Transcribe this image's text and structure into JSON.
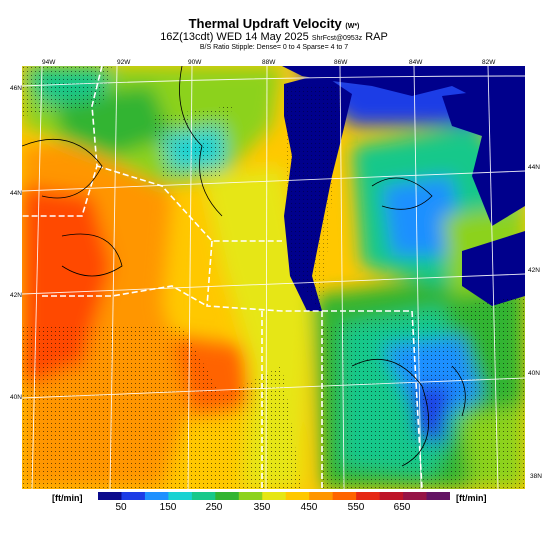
{
  "header": {
    "title": "Thermal Updraft Velocity",
    "title_suffix": "(W*)",
    "line2_main": "16Z(13cdt) WED 14 May 2025",
    "line2_small": "ShrFcst@0953z",
    "line2_model": "RAP",
    "line3": "B/S Ratio Stipple: Dense= 0 to 4 Sparse= 4 to 7"
  },
  "lon_labels": [
    "94W",
    "92W",
    "90W",
    "88W",
    "86W",
    "84W",
    "82W"
  ],
  "lat_labels_left": [
    "46N",
    "44N",
    "42N",
    "40N"
  ],
  "lat_labels_right": [
    "44N",
    "42N",
    "40N",
    "38N"
  ],
  "legend": {
    "unit_left": "[ft/min]",
    "unit_right": "[ft/min]",
    "labels": [
      "50",
      "150",
      "250",
      "350",
      "450",
      "550",
      "650"
    ],
    "colors": [
      "#0a0a8c",
      "#1c3ce6",
      "#1e90ff",
      "#18d2d2",
      "#18c88a",
      "#32b432",
      "#8cd21e",
      "#e6e614",
      "#ffc800",
      "#ff9600",
      "#ff6400",
      "#e62814",
      "#be1428",
      "#961446",
      "#641464"
    ]
  },
  "colors": {
    "lake": "#00008c",
    "orange_core": "#ff4a00"
  }
}
